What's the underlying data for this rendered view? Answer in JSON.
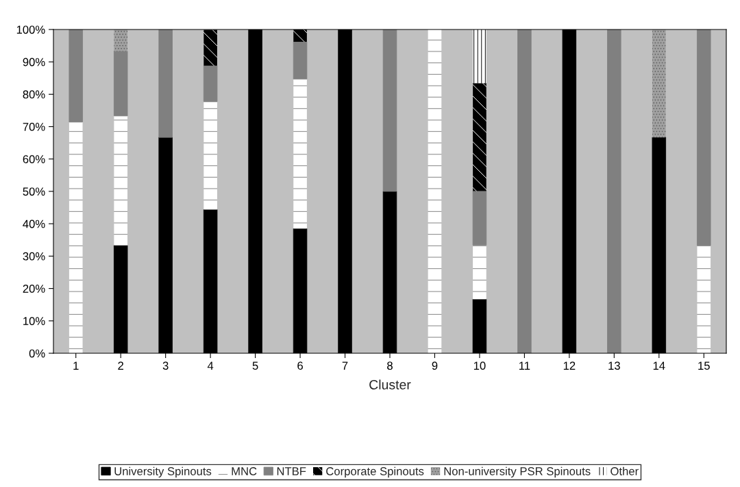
{
  "chart_data": {
    "type": "bar",
    "stacked": true,
    "xlabel": "Cluster",
    "categories": [
      "1",
      "2",
      "3",
      "4",
      "5",
      "6",
      "7",
      "8",
      "9",
      "10",
      "11",
      "12",
      "13",
      "14",
      "15"
    ],
    "series": [
      {
        "name": "University Spinouts",
        "color": "#000000",
        "values": [
          null,
          33.3,
          66.7,
          44.4,
          100,
          38.5,
          100,
          50,
          null,
          16.7,
          null,
          100,
          null,
          66.7,
          null
        ]
      },
      {
        "name": "MNC",
        "color": "#ffffff",
        "values": [
          71.4,
          40,
          null,
          33.3,
          null,
          46.2,
          null,
          null,
          100,
          16.7,
          null,
          null,
          null,
          null,
          33.3
        ]
      },
      {
        "name": "NTBF",
        "color": "#808080",
        "values": [
          28.6,
          20,
          33.3,
          11.1,
          null,
          11.5,
          null,
          50,
          null,
          16.7,
          100,
          null,
          100,
          null,
          66.7
        ]
      },
      {
        "name": "Corporate Spinouts",
        "color": "#000000",
        "values": [
          null,
          null,
          null,
          11.1,
          null,
          3.8,
          null,
          null,
          null,
          33.3,
          null,
          null,
          null,
          null,
          null
        ]
      },
      {
        "name": "Non-university PSR Spinouts",
        "color": "#a0a0a0",
        "values": [
          null,
          6.7,
          null,
          null,
          null,
          null,
          null,
          null,
          null,
          null,
          null,
          null,
          null,
          33.3,
          null
        ]
      },
      {
        "name": "Other",
        "color": "#ffffff",
        "values": [
          null,
          null,
          null,
          null,
          null,
          null,
          null,
          null,
          null,
          16.7,
          null,
          null,
          null,
          null,
          null
        ]
      }
    ],
    "ylim": [
      0,
      100
    ],
    "yticks": [
      {
        "value": 0,
        "label": "0%"
      },
      {
        "value": 10,
        "label": "10%"
      },
      {
        "value": 20,
        "label": "20%"
      },
      {
        "value": 30,
        "label": "30%"
      },
      {
        "value": 40,
        "label": "40%"
      },
      {
        "value": 50,
        "label": "50%"
      },
      {
        "value": 60,
        "label": "60%"
      },
      {
        "value": 70,
        "label": "70%"
      },
      {
        "value": 80,
        "label": "80%"
      },
      {
        "value": 90,
        "label": "90%"
      },
      {
        "value": 100,
        "label": "100%"
      }
    ],
    "legend": "bottom",
    "grid": false
  }
}
